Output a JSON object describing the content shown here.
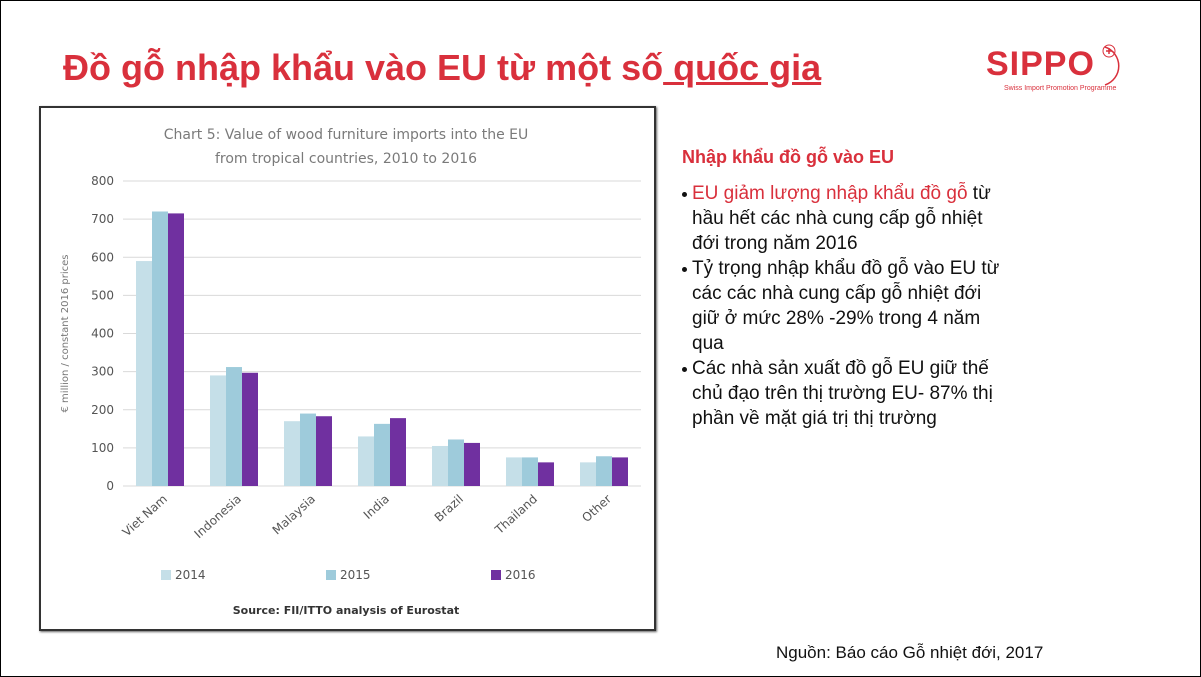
{
  "slide": {
    "title": [
      "Đồ gỗ nhập khẩu vào EU từ một số",
      " quốc gia"
    ],
    "logo": "SIPPO",
    "logo_subtitle": "Swiss Import Promotion Programme",
    "heading": "Nhập khẩu đồ gỗ vào EU",
    "bullets": [
      [
        "EU giảm lượng nhập khẩu đồ gỗ",
        " từ hầu hết các nhà cung cấp gỗ nhiệt đới trong năm 2016"
      ],
      [
        "Tỷ trọng nhập khẩu đồ gỗ vào EU từ các các nhà cung cấp gỗ nhiệt đới giữ ở mức 28% -29% trong 4 năm qua"
      ],
      [
        "Các nhà sản xuất đồ gỗ EU giữ thế chủ đạo trên thị trường EU- 87% thị phần về mặt giá trị thị trường"
      ]
    ],
    "source": "Nguồn: Báo cáo Gỗ nhiệt đới, 2017"
  },
  "chart_data": {
    "type": "bar",
    "title": [
      "Chart 5: Value of wood furniture imports into the EU",
      "from tropical countries, 2010 to 2016"
    ],
    "y_label": "€ million / constant 2016 prices",
    "source": "Source: FII/ITTO analysis of Eurostat",
    "categories": [
      "Viet Nam",
      "Indonesia",
      "Malaysia",
      "India",
      "Brazil",
      "Thailand",
      "Other"
    ],
    "series": [
      {
        "name": "2014",
        "color": "#c5dfe8",
        "values": [
          590,
          290,
          170,
          130,
          105,
          75,
          62
        ]
      },
      {
        "name": "2015",
        "color": "#9ecbdb",
        "values": [
          720,
          312,
          190,
          163,
          122,
          75,
          78
        ]
      },
      {
        "name": "2016",
        "color": "#7030a0",
        "values": [
          715,
          297,
          183,
          178,
          113,
          62,
          75
        ]
      }
    ],
    "ylim": [
      0,
      800
    ],
    "yticks": [
      0,
      100,
      200,
      300,
      400,
      500,
      600,
      700,
      800
    ],
    "grid": true,
    "legend": "bottom"
  }
}
